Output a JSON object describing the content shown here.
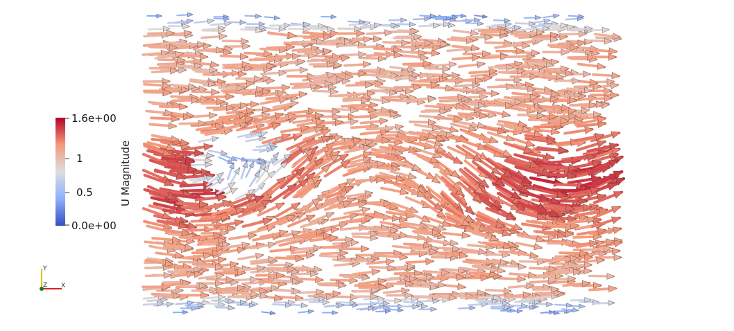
{
  "scalar_bar": {
    "title": "U Magnitude",
    "labels": [
      "1.6e+00",
      "1",
      "0.5",
      "0.0e+00"
    ],
    "range": [
      0,
      1.6
    ],
    "colors": [
      "#3b4cc0",
      "#8db0fe",
      "#dddddd",
      "#f49a7b",
      "#b40426"
    ]
  },
  "orientation_axes": {
    "x_label": "X",
    "y_label": "Y",
    "z_label": "Z",
    "x_color": "#e02020",
    "y_color": "#e0c000",
    "z_color": "#20a020"
  },
  "glyph_field": {
    "type": "vector-arrows",
    "colored_by": "U Magnitude",
    "dominant_direction": "+X",
    "features": [
      "obstacle-wake",
      "wavy-flow-bands",
      "slow-boundary-layers"
    ]
  }
}
